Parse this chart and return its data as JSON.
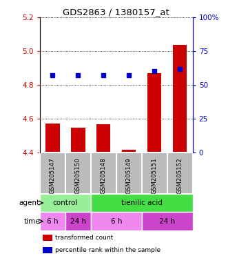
{
  "title": "GDS2863 / 1380157_at",
  "samples": [
    "GSM205147",
    "GSM205150",
    "GSM205148",
    "GSM205149",
    "GSM205151",
    "GSM205152"
  ],
  "bar_values": [
    4.572,
    4.548,
    4.567,
    4.415,
    4.868,
    5.038
  ],
  "bar_bottom": 4.4,
  "percentile_values": [
    57,
    57,
    57,
    57,
    60,
    62
  ],
  "left_ylim": [
    4.4,
    5.2
  ],
  "right_ylim": [
    0,
    100
  ],
  "left_yticks": [
    4.4,
    4.6,
    4.8,
    5.0,
    5.2
  ],
  "right_yticks": [
    0,
    25,
    50,
    75,
    100
  ],
  "bar_color": "#cc0000",
  "dot_color": "#0000cc",
  "agent_groups": [
    {
      "label": "control",
      "start": 0,
      "end": 2,
      "color": "#99ee99"
    },
    {
      "label": "tienilic acid",
      "start": 2,
      "end": 6,
      "color": "#44dd44"
    }
  ],
  "time_groups": [
    {
      "label": "6 h",
      "start": 0,
      "end": 1
    },
    {
      "label": "24 h",
      "start": 1,
      "end": 2
    },
    {
      "label": "6 h",
      "start": 2,
      "end": 4
    },
    {
      "label": "24 h",
      "start": 4,
      "end": 6
    }
  ],
  "time_color_light": "#ee88ee",
  "time_color_dark": "#cc44cc",
  "legend_items": [
    {
      "label": "transformed count",
      "color": "#cc0000"
    },
    {
      "label": "percentile rank within the sample",
      "color": "#0000cc"
    }
  ],
  "tick_color_left": "#cc0000",
  "tick_color_right": "#0000cc",
  "sample_box_color": "#bbbbbb",
  "sample_divider_color": "#ffffff"
}
